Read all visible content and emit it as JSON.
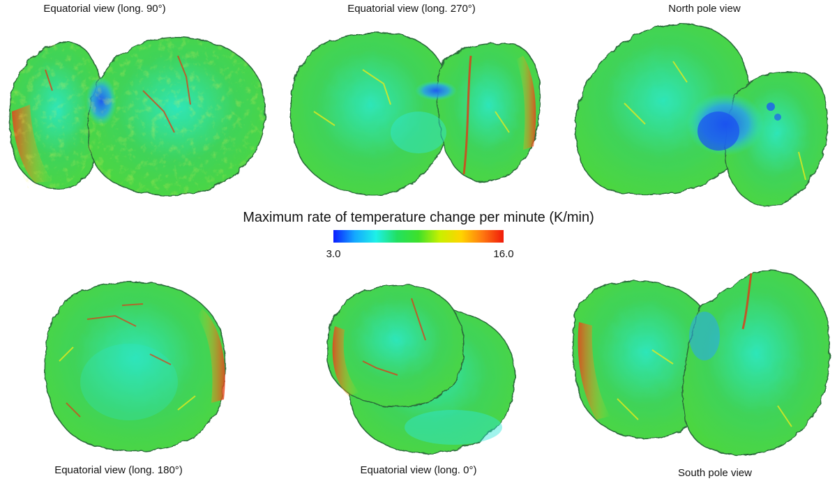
{
  "views": [
    {
      "label": "Equatorial view (long. 90°)"
    },
    {
      "label": "Equatorial view (long. 270°)"
    },
    {
      "label": "North pole view"
    },
    {
      "label": "Equatorial view (long. 180°)"
    },
    {
      "label": "Equatorial view (long. 0°)"
    },
    {
      "label": "South pole view"
    }
  ],
  "colorbar": {
    "title": "Maximum rate of temperature change per minute (K/min)",
    "min_label": "3.0",
    "max_label": "16.0",
    "min": 3.0,
    "max": 16.0,
    "colors": [
      "#0a1cff",
      "#14a8ff",
      "#1ef0e8",
      "#22e060",
      "#3ee02a",
      "#c8f000",
      "#ffd400",
      "#ff7a10",
      "#f01a0a"
    ]
  },
  "palette": {
    "green": "#3fd35a",
    "cyan": "#2ee6c8",
    "blue": "#1e5cf0",
    "yellow": "#e6e81e",
    "red": "#e8401c",
    "outline": "#2a6a3a"
  }
}
